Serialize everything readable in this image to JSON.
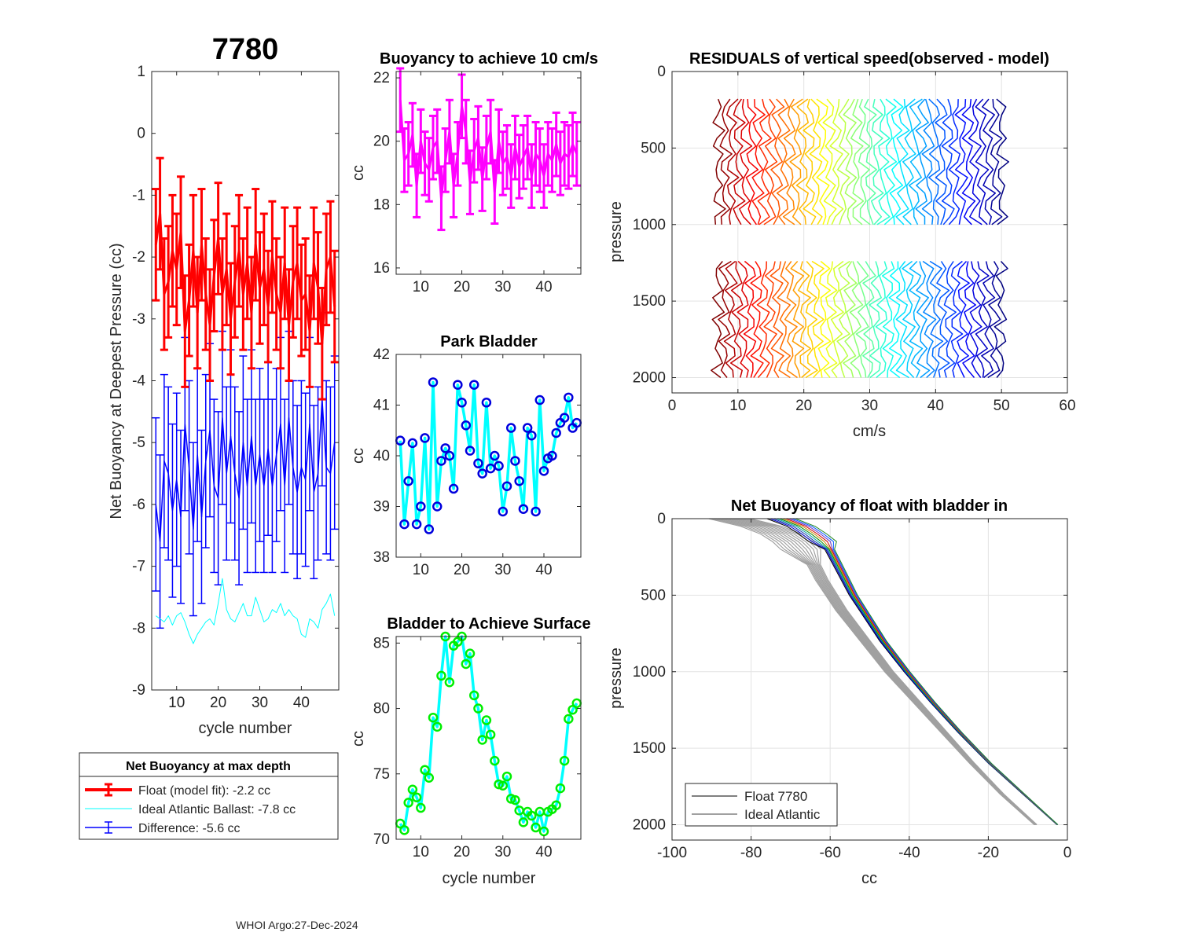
{
  "figure": {
    "main_title": "7780",
    "footer": "WHOI Argo:27-Dec-2024"
  },
  "chart_data": [
    {
      "id": "net_buoyancy",
      "type": "line",
      "title": "",
      "xlabel": "cycle number",
      "ylabel": "Net Buoyancy at Deepest Pressure (cc)",
      "xlim": [
        4,
        49
      ],
      "ylim": [
        -9,
        1
      ],
      "xticks": [
        10,
        20,
        30,
        40
      ],
      "yticks": [
        1,
        0,
        -1,
        -2,
        -3,
        -4,
        -5,
        -6,
        -7,
        -8,
        -9
      ],
      "x": [
        5,
        6,
        7,
        8,
        9,
        10,
        11,
        12,
        13,
        14,
        15,
        16,
        17,
        18,
        19,
        20,
        21,
        22,
        23,
        24,
        25,
        26,
        27,
        28,
        29,
        30,
        31,
        32,
        33,
        34,
        35,
        36,
        37,
        38,
        39,
        40,
        41,
        42,
        43,
        44,
        45,
        46,
        47,
        48
      ],
      "series": [
        {
          "name": "Float (model fit)",
          "color": "#ff0000",
          "values": [
            -1.8,
            -1.3,
            -2.6,
            -2.4,
            -1.9,
            -2.2,
            -1.6,
            -3.2,
            -2.7,
            -1.9,
            -2.9,
            -1.8,
            -2.6,
            -3.1,
            -2.3,
            -1.7,
            -2.6,
            -2.2,
            -3.0,
            -2.4,
            -1.9,
            -2.6,
            -2.1,
            -2.9,
            -1.8,
            -2.5,
            -2.2,
            -2.8,
            -2.0,
            -2.6,
            -2.9,
            -2.1,
            -3.1,
            -2.4,
            -2.1,
            -2.7,
            -2.6,
            -3.2,
            -2.1,
            -2.5,
            -3.4,
            -2.2,
            -2.0,
            -2.8
          ],
          "errors": [
            0.9,
            0.9,
            0.9,
            0.9,
            0.9,
            0.9,
            0.9,
            0.9,
            0.9,
            0.9,
            0.9,
            0.9,
            0.9,
            0.9,
            0.9,
            0.9,
            0.9,
            0.9,
            0.9,
            0.9,
            0.9,
            0.9,
            0.9,
            0.9,
            0.9,
            0.9,
            0.9,
            0.9,
            0.9,
            0.9,
            0.9,
            0.9,
            0.9,
            0.9,
            0.9,
            0.9,
            0.9,
            0.9,
            0.9,
            0.9,
            0.9,
            0.9,
            0.9,
            0.9
          ]
        },
        {
          "name": "Ideal Atlantic Ballast",
          "color": "#00ffff",
          "values": [
            -7.8,
            -7.85,
            -7.9,
            -7.8,
            -7.95,
            -7.8,
            -7.75,
            -7.9,
            -8.1,
            -8.25,
            -8.1,
            -8.0,
            -7.9,
            -7.85,
            -7.95,
            -7.6,
            -7.2,
            -7.7,
            -7.85,
            -7.9,
            -7.75,
            -7.6,
            -7.8,
            -7.8,
            -7.5,
            -7.7,
            -7.9,
            -7.85,
            -7.7,
            -7.75,
            -7.6,
            -7.8,
            -7.7,
            -7.8,
            -7.85,
            -8.1,
            -8.15,
            -7.85,
            -7.9,
            -8.0,
            -7.7,
            -7.6,
            -7.45,
            -7.8
          ]
        },
        {
          "name": "Difference",
          "color": "#0000ff",
          "values": [
            -6.0,
            -6.6,
            -5.3,
            -5.5,
            -6.1,
            -5.6,
            -6.2,
            -4.7,
            -5.4,
            -6.4,
            -5.2,
            -6.2,
            -5.3,
            -4.8,
            -5.7,
            -5.9,
            -4.6,
            -5.5,
            -4.9,
            -5.5,
            -5.9,
            -5.0,
            -5.7,
            -4.9,
            -5.7,
            -5.2,
            -5.7,
            -5.1,
            -5.7,
            -5.2,
            -4.7,
            -5.7,
            -4.6,
            -5.4,
            -5.8,
            -5.4,
            -5.6,
            -4.7,
            -5.8,
            -5.5,
            -4.3,
            -5.4,
            -5.5,
            -5.0
          ],
          "errors": [
            1.4,
            1.4,
            1.4,
            1.4,
            1.4,
            1.4,
            1.4,
            1.4,
            1.4,
            1.4,
            1.4,
            1.4,
            1.4,
            1.4,
            1.4,
            1.4,
            1.4,
            1.4,
            1.4,
            1.4,
            1.4,
            1.4,
            1.4,
            1.4,
            1.4,
            1.4,
            1.4,
            1.4,
            1.4,
            1.4,
            1.4,
            1.4,
            1.4,
            1.4,
            1.4,
            1.4,
            1.4,
            1.4,
            1.4,
            1.4,
            1.4,
            1.4,
            1.4,
            1.4
          ]
        }
      ],
      "legend": {
        "title": "Net Buoyancy at max depth",
        "entries": [
          "Float (model fit):  -2.2 cc",
          "Ideal Atlantic Ballast:  -7.8 cc",
          "Difference:  -5.6 cc"
        ]
      }
    },
    {
      "id": "buoyancy_10cms",
      "type": "line",
      "title": "Buoyancy to achieve 10 cm/s",
      "xlabel": "",
      "ylabel": "cc",
      "xlim": [
        4,
        49
      ],
      "ylim": [
        15.8,
        22.2
      ],
      "xticks": [
        10,
        20,
        30,
        40
      ],
      "yticks": [
        16,
        18,
        20,
        22
      ],
      "color": "#ff00ff",
      "x": [
        5,
        6,
        7,
        8,
        9,
        10,
        11,
        12,
        13,
        14,
        15,
        16,
        17,
        18,
        19,
        20,
        21,
        22,
        23,
        24,
        25,
        26,
        27,
        28,
        29,
        30,
        31,
        32,
        33,
        34,
        35,
        36,
        37,
        38,
        39,
        40,
        41,
        42,
        43,
        44,
        45,
        46,
        47,
        48
      ],
      "values": [
        21.3,
        19.4,
        19.6,
        20.2,
        18.6,
        20.0,
        19.3,
        19.1,
        19.8,
        20.0,
        18.2,
        19.4,
        20.3,
        18.6,
        19.6,
        21.1,
        20.3,
        18.7,
        19.7,
        20.1,
        18.8,
        19.8,
        20.3,
        18.4,
        20.0,
        19.3,
        19.5,
        18.9,
        19.8,
        19.2,
        19.5,
        19.8,
        18.9,
        19.6,
        19.4,
        18.9,
        19.6,
        19.4,
        19.9,
        19.3,
        19.6,
        19.5,
        19.9,
        19.6
      ],
      "errors": [
        1.0,
        1.0,
        1.0,
        1.0,
        1.0,
        1.0,
        1.0,
        1.0,
        1.0,
        1.0,
        1.0,
        1.0,
        1.0,
        1.0,
        1.0,
        1.0,
        1.0,
        1.0,
        1.0,
        1.0,
        1.0,
        1.0,
        1.0,
        1.0,
        1.0,
        1.0,
        1.0,
        1.0,
        1.0,
        1.0,
        1.0,
        1.0,
        1.0,
        1.0,
        1.0,
        1.0,
        1.0,
        1.0,
        1.0,
        1.0,
        1.0,
        1.0,
        1.0,
        1.0
      ]
    },
    {
      "id": "park_bladder",
      "type": "line",
      "title": "Park Bladder",
      "xlabel": "",
      "ylabel": "cc",
      "xlim": [
        4,
        49
      ],
      "ylim": [
        38,
        42
      ],
      "xticks": [
        10,
        20,
        30,
        40
      ],
      "yticks": [
        38,
        39,
        40,
        41,
        42
      ],
      "line_color": "#00ffff",
      "marker_color": "#0000dd",
      "x": [
        5,
        6,
        7,
        8,
        9,
        10,
        11,
        12,
        13,
        14,
        15,
        16,
        17,
        18,
        19,
        20,
        21,
        22,
        23,
        24,
        25,
        26,
        27,
        28,
        29,
        30,
        31,
        32,
        33,
        34,
        35,
        36,
        37,
        38,
        39,
        40,
        41,
        42,
        43,
        44,
        45,
        46,
        47,
        48
      ],
      "values": [
        40.3,
        38.65,
        39.5,
        40.25,
        38.65,
        39.0,
        40.35,
        38.55,
        41.45,
        39.0,
        39.9,
        40.15,
        40.0,
        39.35,
        41.4,
        41.05,
        40.6,
        40.1,
        41.4,
        39.85,
        39.65,
        41.05,
        39.75,
        40.0,
        39.8,
        38.9,
        39.4,
        40.55,
        39.9,
        39.5,
        38.95,
        40.55,
        40.4,
        38.9,
        41.1,
        39.7,
        39.95,
        40.0,
        40.45,
        40.65,
        40.75,
        41.15,
        40.55,
        40.65
      ]
    },
    {
      "id": "bladder_surface",
      "type": "line",
      "title": "Bladder to Achieve Surface",
      "xlabel": "cycle number",
      "ylabel": "cc",
      "xlim": [
        4,
        49
      ],
      "ylim": [
        70,
        85.5
      ],
      "xticks": [
        10,
        20,
        30,
        40
      ],
      "yticks": [
        70,
        75,
        80,
        85
      ],
      "line_color": "#00ffff",
      "marker_color": "#00ee00",
      "x": [
        5,
        6,
        7,
        8,
        9,
        10,
        11,
        12,
        13,
        14,
        15,
        16,
        17,
        18,
        19,
        20,
        21,
        22,
        23,
        24,
        25,
        26,
        27,
        28,
        29,
        30,
        31,
        32,
        33,
        34,
        35,
        36,
        37,
        38,
        39,
        40,
        41,
        42,
        43,
        44,
        45,
        46,
        47,
        48
      ],
      "values": [
        71.2,
        70.7,
        72.8,
        73.8,
        73.2,
        72.4,
        75.3,
        74.7,
        79.3,
        78.6,
        82.5,
        85.5,
        82.0,
        84.8,
        85.1,
        85.5,
        83.4,
        84.2,
        81.0,
        80.0,
        77.6,
        79.1,
        78.0,
        76.0,
        74.2,
        74.1,
        74.8,
        73.1,
        73.0,
        72.2,
        71.3,
        72.1,
        71.8,
        70.9,
        72.1,
        70.6,
        72.1,
        72.3,
        72.6,
        73.9,
        76.0,
        79.2,
        79.9,
        80.4
      ]
    },
    {
      "id": "residuals",
      "type": "line",
      "title": "RESIDUALS of vertical speed(observed - model)",
      "xlabel": "cm/s",
      "ylabel": "pressure",
      "xlim": [
        0,
        60
      ],
      "ylim": [
        2100,
        0
      ],
      "xticks": [
        0,
        10,
        20,
        30,
        40,
        50,
        60
      ],
      "yticks": [
        0,
        500,
        1000,
        1500,
        2000
      ],
      "profiles": 44,
      "offset_start_cms": 7,
      "offset_step_cms": 1,
      "upper_segment_pressure": [
        180,
        1000
      ],
      "lower_segment_pressure": [
        1240,
        2000
      ]
    },
    {
      "id": "net_buoyancy_bladder_in",
      "type": "line",
      "title": "Net Buoyancy of float with bladder in",
      "xlabel": "cc",
      "ylabel": "pressure",
      "xlim": [
        -100,
        0
      ],
      "ylim": [
        2100,
        0
      ],
      "xticks": [
        -100,
        -80,
        -60,
        -40,
        -20,
        0
      ],
      "yticks": [
        0,
        500,
        1000,
        1500,
        2000
      ],
      "series": [
        {
          "name": "Float 7780",
          "color": "#000000",
          "pressure": [
            0,
            50,
            100,
            150,
            200,
            300,
            400,
            500,
            600,
            700,
            800,
            900,
            1000,
            1200,
            1400,
            1600,
            1800,
            2000
          ],
          "values": [
            -72,
            -67,
            -64,
            -61.5,
            -60,
            -58,
            -56,
            -54,
            -51.5,
            -49,
            -46.5,
            -43.5,
            -40.5,
            -34,
            -27,
            -19.5,
            -11,
            -2.5
          ]
        },
        {
          "name": "Ideal Atlantic",
          "color": "#a0a0a0",
          "pressure": [
            0,
            50,
            100,
            150,
            200,
            300,
            400,
            500,
            600,
            700,
            800,
            900,
            1000,
            1200,
            1400,
            1600,
            1800,
            2000
          ],
          "values": [
            -85,
            -77,
            -72,
            -69,
            -67,
            -64,
            -62,
            -59.5,
            -57,
            -54,
            -51,
            -48,
            -45,
            -38,
            -31,
            -24,
            -16.5,
            -8
          ]
        }
      ],
      "legend": {
        "entries": [
          "Float 7780",
          "Ideal Atlantic"
        ]
      }
    }
  ]
}
